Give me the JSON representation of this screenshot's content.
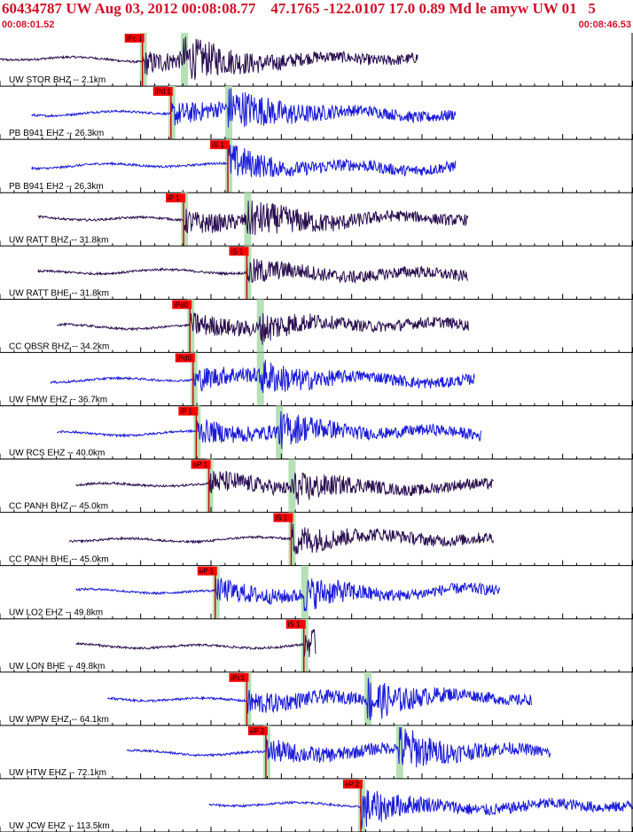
{
  "header": {
    "title": "60434787 UW Aug 03, 2012 00:08:08.77    47.1765 -122.0107 17.0 0.89 Md le amyw UW 01   5",
    "time_start": "00:08:01.52",
    "time_end": "00:08:46.53"
  },
  "colors": {
    "header_text": "#d0122a",
    "pick_box": "#ff0000",
    "pick_text": "#000000",
    "window_band": "#b6e0b6",
    "trace_blue": "#1b1bd8",
    "trace_purple": "#2a0f4f",
    "grid": "#000000",
    "label_text": "#000000"
  },
  "chart_data": {
    "type": "seismogram",
    "time_range": [
      "00:08:01.52",
      "00:08:46.53"
    ],
    "traces": [
      {
        "label": "UW STOR BHZ -- 2.1km",
        "color": "purple",
        "pick": "iPc 1",
        "amp": 0.75,
        "start": 0.0,
        "end": 0.66,
        "onset": 0.225,
        "s_arr": 0.29,
        "decay": 0.6,
        "coda_amp": 0.35
      },
      {
        "label": "PB B941 EHZ -- 26.3km",
        "color": "blue",
        "pick": "iPd 1",
        "amp": 0.9,
        "start": 0.05,
        "end": 0.72,
        "onset": 0.27,
        "s_arr": 0.36,
        "decay": 0.9,
        "coda_amp": 0.12
      },
      {
        "label": "PB B941 EH2 -- 26.3km",
        "color": "blue",
        "pick": "iS 1",
        "amp": 0.85,
        "start": 0.05,
        "end": 0.72,
        "onset": 0.36,
        "s_arr": 0.36,
        "decay": 0.7,
        "coda_amp": 0.05
      },
      {
        "label": "UW RATT BHZ -- 31.8km",
        "color": "purple",
        "pick": "iP 1",
        "amp": 0.6,
        "start": 0.06,
        "end": 0.74,
        "onset": 0.29,
        "s_arr": 0.39,
        "decay": 0.8,
        "coda_amp": 0.3
      },
      {
        "label": "UW RATT BHE -- 31.8km",
        "color": "purple",
        "pick": "iS 1",
        "amp": 0.55,
        "start": 0.06,
        "end": 0.74,
        "onset": 0.39,
        "s_arr": 0.39,
        "decay": 0.6,
        "coda_amp": 0.15
      },
      {
        "label": "CC OBSR BHZ -- 34.2km",
        "color": "purple",
        "pick": "iPd0",
        "amp": 0.65,
        "start": 0.09,
        "end": 0.74,
        "onset": 0.3,
        "s_arr": 0.41,
        "decay": 0.7,
        "coda_amp": 0.12
      },
      {
        "label": "UW FMW EHZ -- 36.7km",
        "color": "blue",
        "pick": "iPd0",
        "amp": 0.8,
        "start": 0.08,
        "end": 0.75,
        "onset": 0.305,
        "s_arr": 0.41,
        "decay": 0.9,
        "coda_amp": 0.04
      },
      {
        "label": "UW RCS EHZ -- 40.0km",
        "color": "blue",
        "pick": "iP 1",
        "amp": 0.7,
        "start": 0.09,
        "end": 0.76,
        "onset": 0.31,
        "s_arr": 0.44,
        "decay": 0.6,
        "coda_amp": 0.2
      },
      {
        "label": "CC PANH BHZ -- 45.0km",
        "color": "purple",
        "pick": "eP 1",
        "amp": 0.55,
        "start": 0.12,
        "end": 0.78,
        "onset": 0.33,
        "s_arr": 0.46,
        "decay": 0.5,
        "coda_amp": 0.3
      },
      {
        "label": "CC PANH BHE -- 45.0km",
        "color": "purple",
        "pick": "iS 1",
        "amp": 0.5,
        "start": 0.11,
        "end": 0.78,
        "onset": 0.46,
        "s_arr": 0.46,
        "decay": 0.4,
        "coda_amp": 0.35
      },
      {
        "label": "UW LO2 EHZ -- 49.8km",
        "color": "blue",
        "pick": "eP 1",
        "amp": 0.65,
        "start": 0.12,
        "end": 0.79,
        "onset": 0.34,
        "s_arr": 0.48,
        "decay": 0.6,
        "coda_amp": 0.2
      },
      {
        "label": "UW LON BHE -- 49.8km",
        "color": "purple",
        "pick": "iS 1",
        "amp": 0.6,
        "start": 0.12,
        "end": 0.5,
        "onset": 0.48,
        "s_arr": 0.48,
        "decay": 0.7,
        "coda_amp": 0.1
      },
      {
        "label": "UW WPW EHZ -- 64.1km",
        "color": "blue",
        "pick": "iPc1",
        "amp": 0.8,
        "start": 0.17,
        "end": 0.84,
        "onset": 0.39,
        "s_arr": 0.58,
        "decay": 0.35,
        "coda_amp": 0.35
      },
      {
        "label": "UW HTW EHZ -- 72.1km",
        "color": "blue",
        "pick": "eP 2",
        "amp": 0.8,
        "start": 0.2,
        "end": 0.87,
        "onset": 0.42,
        "s_arr": 0.63,
        "decay": 0.35,
        "coda_amp": 0.4
      },
      {
        "label": "UW JCW EHZ -- 113.5km",
        "color": "blue",
        "pick": "eP 2",
        "amp": 0.7,
        "start": 0.33,
        "end": 1.0,
        "onset": 0.57,
        "s_arr": 0.57,
        "decay": 0.35,
        "coda_amp": 0.35
      }
    ]
  }
}
